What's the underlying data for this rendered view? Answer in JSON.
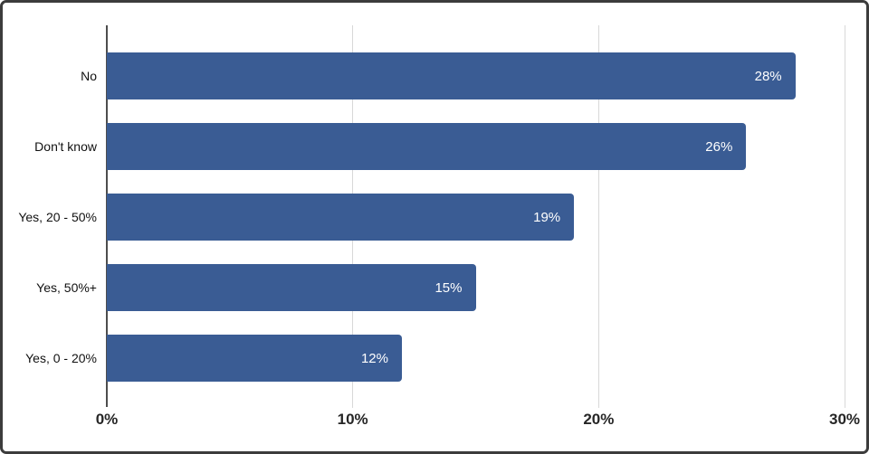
{
  "chart_data": {
    "type": "bar",
    "orientation": "horizontal",
    "title": "",
    "xlabel": "",
    "ylabel": "",
    "categories": [
      "No",
      "Don't know",
      "Yes, 20 - 50%",
      "Yes, 50%+",
      "Yes, 0 - 20%"
    ],
    "values": [
      28,
      26,
      19,
      15,
      12
    ],
    "value_labels": [
      "28%",
      "26%",
      "19%",
      "15%",
      "12%"
    ],
    "xlim": [
      0,
      30
    ],
    "x_ticks": [
      {
        "value": 0,
        "label": "0%"
      },
      {
        "value": 10,
        "label": "10%"
      },
      {
        "value": 20,
        "label": "20%"
      },
      {
        "value": 30,
        "label": "30%"
      }
    ],
    "grid": "vertical-gridlines-on",
    "legend": "none",
    "colors": {
      "bar": "#3a5c94",
      "value_label": "#ffffff",
      "gridline": "#d8d8d8",
      "axis_line": "#4d4d4d",
      "tick_label": "#262626",
      "category_label": "#111111",
      "frame_border": "#3c3c3c",
      "background": "#ffffff"
    }
  }
}
